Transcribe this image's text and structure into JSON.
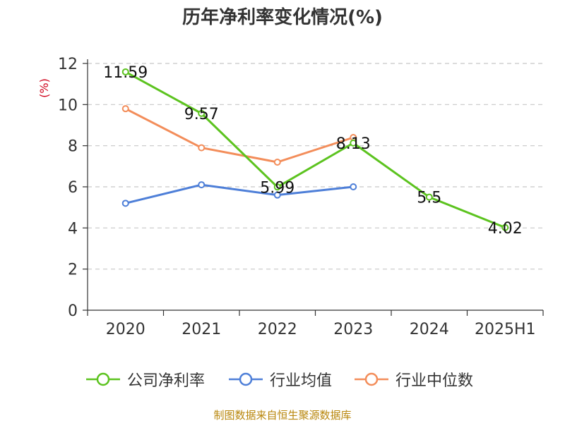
{
  "chart_data": {
    "type": "line",
    "title": "历年净利率变化情况(%)",
    "ylabel": "(%)",
    "categories": [
      "2020",
      "2021",
      "2022",
      "2023",
      "2024",
      "2025H1"
    ],
    "ylim": [
      0,
      12
    ],
    "yticks": [
      0,
      2,
      4,
      6,
      8,
      10,
      12
    ],
    "grid": true,
    "legend_position": "bottom",
    "series": [
      {
        "name": "公司净利率",
        "color": "#5cc31f",
        "values": [
          11.59,
          9.57,
          5.99,
          8.13,
          5.5,
          4.02
        ],
        "labels": [
          "11.59",
          "9.57",
          "5.99",
          "8.13",
          "5.5",
          "4.02"
        ]
      },
      {
        "name": "行业均值",
        "color": "#4e7fd8",
        "values": [
          5.2,
          6.1,
          5.6,
          6.0,
          null,
          null
        ]
      },
      {
        "name": "行业中位数",
        "color": "#f38d5a",
        "values": [
          9.8,
          7.9,
          7.2,
          8.4,
          null,
          null
        ]
      }
    ]
  },
  "source_note": "制图数据来自恒生聚源数据库"
}
